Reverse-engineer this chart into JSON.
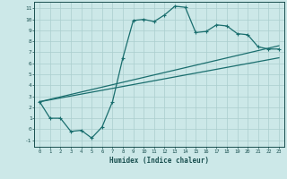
{
  "xlabel": "Humidex (Indice chaleur)",
  "bg_color": "#cce8e8",
  "line_color": "#1a6e6e",
  "grid_color": "#aacece",
  "xlim": [
    -0.5,
    23.5
  ],
  "ylim": [
    -1.6,
    11.6
  ],
  "xticks": [
    0,
    1,
    2,
    3,
    4,
    5,
    6,
    7,
    8,
    9,
    10,
    11,
    12,
    13,
    14,
    15,
    16,
    17,
    18,
    19,
    20,
    21,
    22,
    23
  ],
  "yticks": [
    -1,
    0,
    1,
    2,
    3,
    4,
    5,
    6,
    7,
    8,
    9,
    10,
    11
  ],
  "curve_x": [
    0,
    1,
    2,
    3,
    4,
    5,
    6,
    7,
    8,
    9,
    10,
    11,
    12,
    13,
    14,
    15,
    16,
    17,
    18,
    19,
    20,
    21,
    22,
    23
  ],
  "curve_y": [
    2.5,
    1.0,
    1.0,
    -0.2,
    -0.1,
    -0.8,
    0.2,
    2.5,
    6.5,
    9.9,
    10.0,
    9.8,
    10.4,
    11.2,
    11.1,
    8.8,
    8.9,
    9.5,
    9.4,
    8.7,
    8.6,
    7.5,
    7.3,
    7.3
  ],
  "line1_x": [
    0,
    23
  ],
  "line1_y": [
    2.5,
    6.5
  ],
  "line2_x": [
    0,
    23
  ],
  "line2_y": [
    2.5,
    7.6
  ],
  "marker_size": 3.5,
  "linewidth": 0.9
}
